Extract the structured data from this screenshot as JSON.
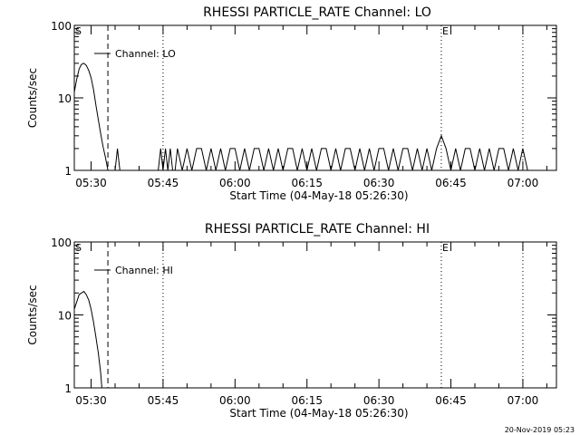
{
  "footer": "20-Nov-2019 05:23",
  "chart_data": [
    {
      "type": "line",
      "title": "RHESSI PARTICLE_RATE Channel: LO",
      "xlabel": "Start Time (04-May-18 05:26:30)",
      "ylabel": "Counts/sec",
      "yscale": "log",
      "ylim": [
        1,
        100
      ],
      "xlim": [
        "05:26:30",
        "07:07:00"
      ],
      "y_ticks": [
        1,
        10,
        100
      ],
      "x_ticks": [
        "05:30",
        "05:45",
        "06:00",
        "06:15",
        "06:30",
        "06:45",
        "07:00"
      ],
      "legend": "Channel: LO",
      "legend_position": "top-left",
      "markers": [
        {
          "label": "S",
          "time": "05:26:30",
          "style": "none"
        },
        {
          "label": "",
          "time": "05:33:30",
          "style": "dashed"
        },
        {
          "label": "",
          "time": "05:45:00",
          "style": "dotted"
        },
        {
          "label": "E",
          "time": "06:43:00",
          "style": "dotted"
        },
        {
          "label": "",
          "time": "07:00:00",
          "style": "dotted"
        }
      ],
      "series": [
        {
          "name": "Channel: LO",
          "x": [
            "05:26:30",
            "05:27:00",
            "05:27:30",
            "05:28:00",
            "05:28:30",
            "05:29:00",
            "05:29:30",
            "05:30:00",
            "05:30:30",
            "05:31:00",
            "05:31:30",
            "05:32:00",
            "05:32:30",
            "05:33:00",
            "05:33:30",
            "05:34:00",
            "05:34:30",
            "05:35:00",
            "05:35:30",
            "05:36:00",
            "05:36:30",
            "05:37:00",
            "05:44:00",
            "05:44:30",
            "05:45:00",
            "05:45:30",
            "05:46:00",
            "05:46:30",
            "05:47:00",
            "05:47:30",
            "05:48:00",
            "05:49:00",
            "05:50:00",
            "05:51:00",
            "05:52:00",
            "05:53:00",
            "05:54:00",
            "05:55:00",
            "05:56:00",
            "05:57:00",
            "05:58:00",
            "05:59:00",
            "06:00:00",
            "06:01:00",
            "06:02:00",
            "06:03:00",
            "06:04:00",
            "06:05:00",
            "06:06:00",
            "06:07:00",
            "06:08:00",
            "06:09:00",
            "06:10:00",
            "06:11:00",
            "06:12:00",
            "06:13:00",
            "06:14:00",
            "06:15:00",
            "06:16:00",
            "06:17:00",
            "06:18:00",
            "06:19:00",
            "06:20:00",
            "06:21:00",
            "06:22:00",
            "06:23:00",
            "06:24:00",
            "06:25:00",
            "06:26:00",
            "06:27:00",
            "06:28:00",
            "06:29:00",
            "06:30:00",
            "06:31:00",
            "06:32:00",
            "06:33:00",
            "06:34:00",
            "06:35:00",
            "06:36:00",
            "06:37:00",
            "06:38:00",
            "06:39:00",
            "06:40:00",
            "06:41:00",
            "06:42:00",
            "06:43:00",
            "06:44:00",
            "06:45:00",
            "06:46:00",
            "06:47:00",
            "06:48:00",
            "06:49:00",
            "06:50:00",
            "06:51:00",
            "06:52:00",
            "06:53:00",
            "06:54:00",
            "06:55:00",
            "06:56:00",
            "06:57:00",
            "06:58:00",
            "06:59:00",
            "07:00:00",
            "07:01:00"
          ],
          "y": [
            12,
            18,
            25,
            29,
            30,
            28,
            24,
            19,
            13,
            8,
            5,
            3.2,
            2.1,
            1.5,
            1,
            1,
            1,
            1,
            2,
            1,
            1,
            1,
            1,
            2,
            1,
            2,
            1,
            2,
            1,
            1,
            2,
            1,
            2,
            1,
            2,
            2,
            1,
            2,
            1,
            2,
            1,
            2,
            2,
            1,
            2,
            1,
            2,
            2,
            1,
            2,
            1,
            2,
            1,
            2,
            2,
            1,
            2,
            1,
            2,
            1,
            2,
            2,
            1,
            2,
            1,
            2,
            2,
            1,
            2,
            1,
            2,
            1,
            2,
            2,
            1,
            2,
            1,
            2,
            2,
            1,
            2,
            1,
            2,
            1,
            2,
            3,
            2,
            1,
            2,
            1,
            2,
            2,
            1,
            2,
            1,
            2,
            1,
            2,
            2,
            1,
            2,
            1,
            2,
            1
          ]
        }
      ]
    },
    {
      "type": "line",
      "title": "RHESSI PARTICLE_RATE Channel: HI",
      "xlabel": "Start Time (04-May-18 05:26:30)",
      "ylabel": "Counts/sec",
      "yscale": "log",
      "ylim": [
        1,
        100
      ],
      "xlim": [
        "05:26:30",
        "07:07:00"
      ],
      "y_ticks": [
        1,
        10,
        100
      ],
      "x_ticks": [
        "05:30",
        "05:45",
        "06:00",
        "06:15",
        "06:30",
        "06:45",
        "07:00"
      ],
      "legend": "Channel: HI",
      "legend_position": "top-left",
      "markers": [
        {
          "label": "S",
          "time": "05:26:30",
          "style": "none"
        },
        {
          "label": "",
          "time": "05:33:30",
          "style": "dashed"
        },
        {
          "label": "",
          "time": "05:45:00",
          "style": "dotted"
        },
        {
          "label": "E",
          "time": "06:43:00",
          "style": "dotted"
        },
        {
          "label": "",
          "time": "07:00:00",
          "style": "dotted"
        }
      ],
      "series": [
        {
          "name": "Channel: HI",
          "x": [
            "05:26:30",
            "05:27:00",
            "05:27:30",
            "05:28:00",
            "05:28:30",
            "05:29:00",
            "05:29:30",
            "05:30:00",
            "05:30:30",
            "05:31:00",
            "05:31:30",
            "05:32:00",
            "05:32:15"
          ],
          "y": [
            12,
            15,
            19,
            20,
            21,
            19,
            16,
            12,
            8,
            5,
            3,
            1.6,
            1
          ]
        }
      ]
    }
  ]
}
